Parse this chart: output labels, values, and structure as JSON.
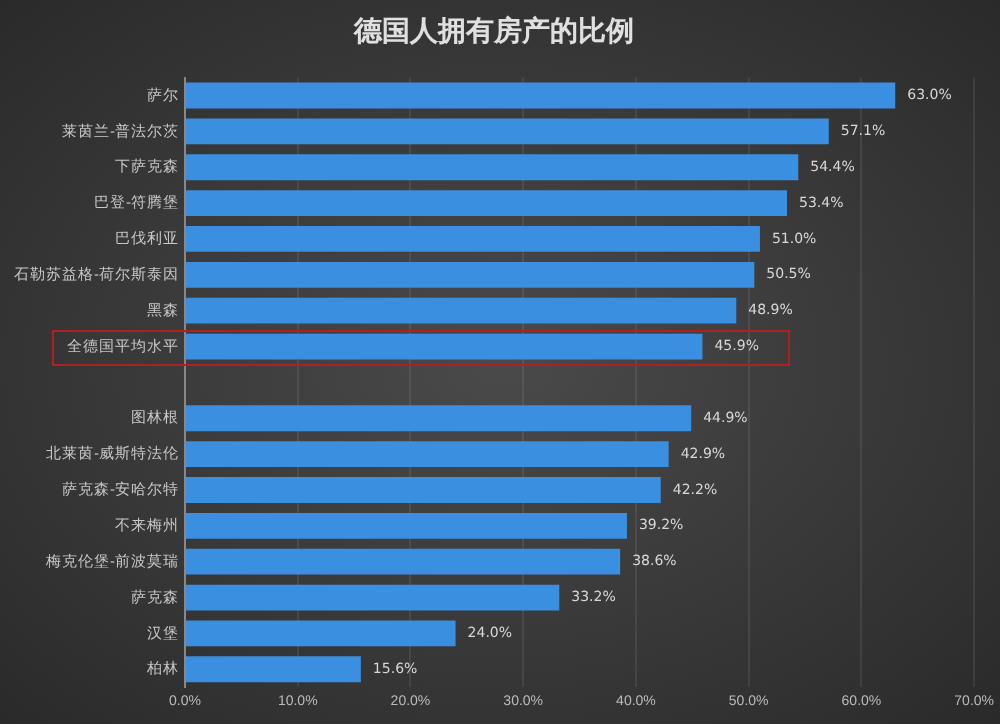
{
  "chart_data": {
    "type": "bar",
    "orientation": "horizontal",
    "title": "德国人拥有房产的比例",
    "categories": [
      "萨尔",
      "莱茵兰-普法尔茨",
      "下萨克森",
      "巴登-符腾堡",
      "巴伐利亚",
      "石勒苏益格-荷尔斯泰因",
      "黑森",
      "全德国平均水平",
      null,
      "图林根",
      "北莱茵-威斯特法伦",
      "萨克森-安哈尔特",
      "不来梅州",
      "梅克伦堡-前波莫瑞",
      "萨克森",
      "汉堡",
      "柏林"
    ],
    "values": [
      63.0,
      57.1,
      54.4,
      53.4,
      51.0,
      50.5,
      48.9,
      45.9,
      null,
      44.9,
      42.9,
      42.2,
      39.2,
      38.6,
      33.2,
      24.0,
      15.6
    ],
    "value_labels": [
      "63.0%",
      "57.1%",
      "54.4%",
      "53.4%",
      "51.0%",
      "50.5%",
      "48.9%",
      "45.9%",
      null,
      "44.9%",
      "42.9%",
      "42.2%",
      "39.2%",
      "38.6%",
      "33.2%",
      "24.0%",
      "15.6%"
    ],
    "color": "#3b8fe0",
    "xlim": [
      0,
      70
    ],
    "xticks": [
      {
        "value": 0,
        "label": "0.0%"
      },
      {
        "value": 10,
        "label": "10.0%"
      },
      {
        "value": 20,
        "label": "20.0%"
      },
      {
        "value": 30,
        "label": "30.0%"
      },
      {
        "value": 40,
        "label": "40.0%"
      },
      {
        "value": 50,
        "label": "50.0%"
      },
      {
        "value": 60,
        "label": "60.0%"
      },
      {
        "value": 70,
        "label": "70.0%"
      }
    ],
    "grid": "x",
    "legend": false
  }
}
